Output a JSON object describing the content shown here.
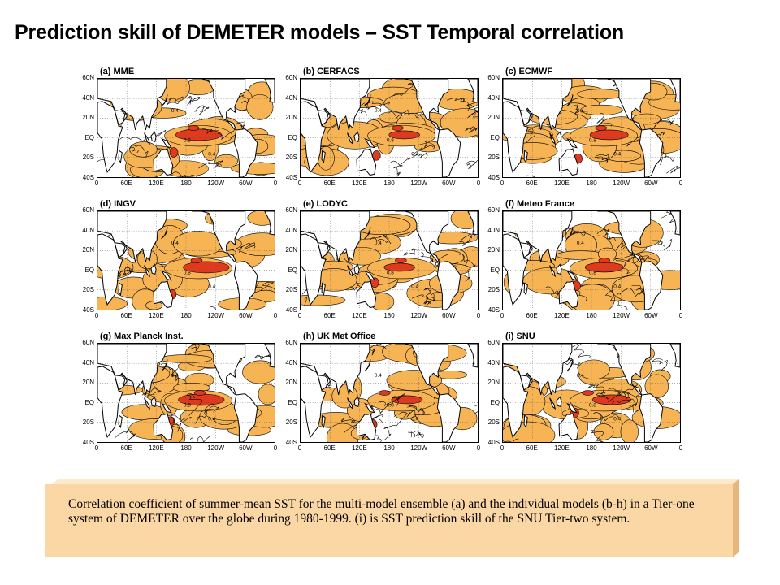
{
  "title": "Prediction skill of DEMETER models – SST Temporal correlation",
  "panels": [
    {
      "label": "(a) MME"
    },
    {
      "label": "(b) CERFACS"
    },
    {
      "label": "(c) ECMWF"
    },
    {
      "label": "(d) INGV"
    },
    {
      "label": "(e) LODYC"
    },
    {
      "label": "(f) Meteo France"
    },
    {
      "label": "(g) Max Planck Inst."
    },
    {
      "label": "(h) UK Met Office"
    },
    {
      "label": "(i) SNU"
    }
  ],
  "lat_ticks": [
    "60N",
    "40N",
    "20N",
    "EQ",
    "20S",
    "40S"
  ],
  "lon_ticks": [
    "0",
    "60E",
    "120E",
    "180",
    "120W",
    "60W",
    "0"
  ],
  "contour_labels": [
    "0.4",
    "0.8"
  ],
  "colors": {
    "positive_fill": "#f7b455",
    "strong_fill": "#e03a1e",
    "land": "#ffffff",
    "contour": "#000000",
    "caption_bg": "#fbd7a6"
  },
  "caption": "Correlation coefficient of summer-mean SST for the multi-model ensemble (a) and the individual models (b-h) in a Tier-one system of DEMETER over the globe during 1980-1999. (i) is SST prediction skill of the SNU Tier-two system."
}
